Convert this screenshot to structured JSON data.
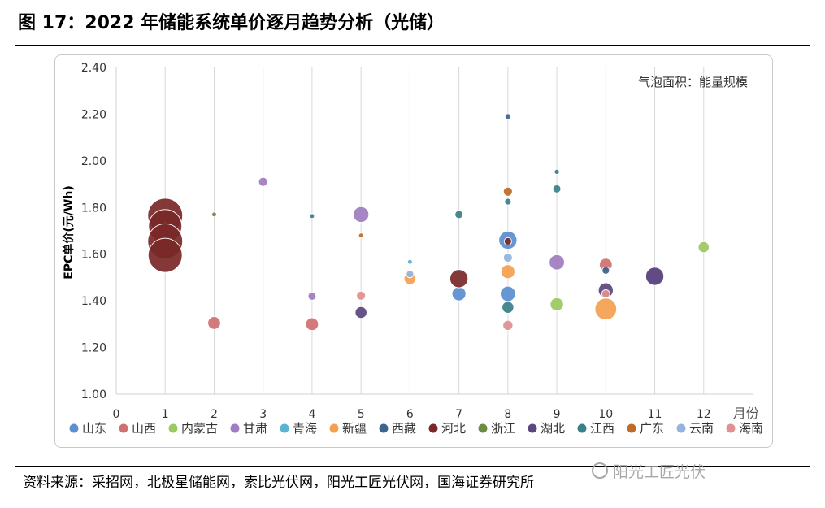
{
  "figure": {
    "title": "图 17：2022 年储能系统单价逐月趋势分析（光储）",
    "source": "资料来源：采招网，北极星储能网，索比光伏网，阳光工匠光伏网，国海证券研究所",
    "watermark": "阳光工匠光伏"
  },
  "chart_data": {
    "type": "bubble",
    "ylabel": "EPC单价(元/Wh)",
    "xlabel": "月份",
    "xlim": [
      0,
      13
    ],
    "ylim": [
      1.0,
      2.4
    ],
    "x_ticks": [
      "0",
      "1",
      "2",
      "3",
      "4",
      "5",
      "6",
      "7",
      "8",
      "9",
      "10",
      "11",
      "12"
    ],
    "y_ticks": [
      "1.00",
      "1.20",
      "1.40",
      "1.60",
      "1.80",
      "2.00",
      "2.20",
      "2.40"
    ],
    "annotation": "气泡面积：能量规模",
    "grid": "vertical",
    "legend_position": "bottom",
    "series": [
      {
        "name": "山东",
        "color": "#5b8fd0",
        "points": [
          [
            7,
            1.43,
            0.35
          ],
          [
            8,
            1.66,
            0.6
          ],
          [
            8,
            1.43,
            0.42
          ]
        ]
      },
      {
        "name": "山西",
        "color": "#d07070",
        "points": [
          [
            2,
            1.305,
            0.3
          ],
          [
            4,
            1.3,
            0.3
          ],
          [
            10,
            1.555,
            0.3
          ]
        ]
      },
      {
        "name": "内蒙古",
        "color": "#9cc860",
        "points": [
          [
            9,
            1.385,
            0.32
          ],
          [
            12,
            1.63,
            0.22
          ]
        ]
      },
      {
        "name": "甘肃",
        "color": "#a07cc0",
        "points": [
          [
            3,
            1.91,
            0.15
          ],
          [
            4,
            1.42,
            0.12
          ],
          [
            5,
            1.77,
            0.45
          ],
          [
            9,
            1.565,
            0.42
          ],
          [
            11,
            1.505,
            0.55
          ]
        ]
      },
      {
        "name": "青海",
        "color": "#58b4d0",
        "points": [
          [
            6,
            1.567,
            0.02
          ]
        ]
      },
      {
        "name": "新疆",
        "color": "#f5a050",
        "points": [
          [
            6,
            1.495,
            0.25
          ],
          [
            8,
            1.525,
            0.35
          ],
          [
            10,
            1.365,
            0.85
          ]
        ]
      },
      {
        "name": "西藏",
        "color": "#3c6490",
        "points": [
          [
            8,
            2.19,
            0.06
          ],
          [
            10,
            1.53,
            0.1
          ]
        ]
      },
      {
        "name": "河北",
        "color": "#7a2828",
        "points": [
          [
            1,
            1.765,
            2.2
          ],
          [
            1,
            1.72,
            2.0
          ],
          [
            1,
            1.655,
            2.2
          ],
          [
            1,
            1.595,
            2.1
          ],
          [
            7,
            1.495,
            0.6
          ],
          [
            8,
            1.655,
            0.1
          ]
        ]
      },
      {
        "name": "浙江",
        "color": "#6a8c40",
        "points": [
          [
            2,
            1.77,
            0.04
          ]
        ]
      },
      {
        "name": "湖北",
        "color": "#5c4680",
        "points": [
          [
            5,
            1.35,
            0.25
          ],
          [
            10,
            1.445,
            0.4
          ],
          [
            11,
            1.505,
            0.6
          ]
        ]
      },
      {
        "name": "江西",
        "color": "#3a8088",
        "points": [
          [
            4,
            1.763,
            0.03
          ],
          [
            7,
            1.77,
            0.12
          ],
          [
            8,
            1.825,
            0.08
          ],
          [
            8,
            1.372,
            0.25
          ],
          [
            9,
            1.953,
            0.05
          ],
          [
            9,
            1.88,
            0.12
          ]
        ]
      },
      {
        "name": "广东",
        "color": "#c06a28",
        "points": [
          [
            5,
            1.68,
            0.02
          ],
          [
            8,
            1.868,
            0.15
          ]
        ]
      },
      {
        "name": "云南",
        "color": "#94b4dc",
        "points": [
          [
            6,
            1.515,
            0.1
          ],
          [
            8,
            1.585,
            0.15
          ]
        ]
      },
      {
        "name": "海南",
        "color": "#e09090",
        "points": [
          [
            5,
            1.422,
            0.15
          ],
          [
            8,
            1.295,
            0.18
          ],
          [
            10,
            1.43,
            0.12
          ]
        ]
      }
    ]
  }
}
